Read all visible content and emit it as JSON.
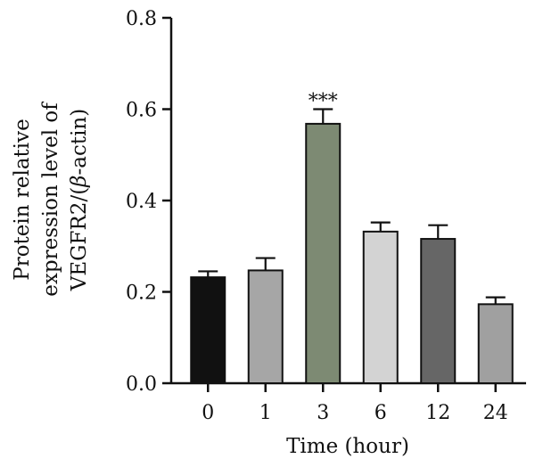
{
  "chart_data": {
    "type": "bar",
    "categories": [
      "0",
      "1",
      "3",
      "6",
      "12",
      "24"
    ],
    "values": [
      0.232,
      0.247,
      0.568,
      0.332,
      0.316,
      0.173
    ],
    "errors": [
      0.013,
      0.027,
      0.032,
      0.02,
      0.03,
      0.015
    ],
    "colors": [
      "#111111",
      "#a6a6a6",
      "#7d8a73",
      "#d3d3d3",
      "#666666",
      "#a0a0a0"
    ],
    "annotations": [
      "",
      "",
      "***",
      "",
      "",
      ""
    ],
    "xlabel": "Time (hour)",
    "ylabel_lines": [
      "Protein relative",
      "expression level of"
    ],
    "ylabel_line3": {
      "prefix": "VEGFR2/(",
      "symbol": "β",
      "suffix": "-actin)"
    },
    "yticks": [
      "0.0",
      "0.2",
      "0.4",
      "0.6",
      "0.8"
    ],
    "ylim": [
      0,
      0.8
    ],
    "grid": false
  }
}
